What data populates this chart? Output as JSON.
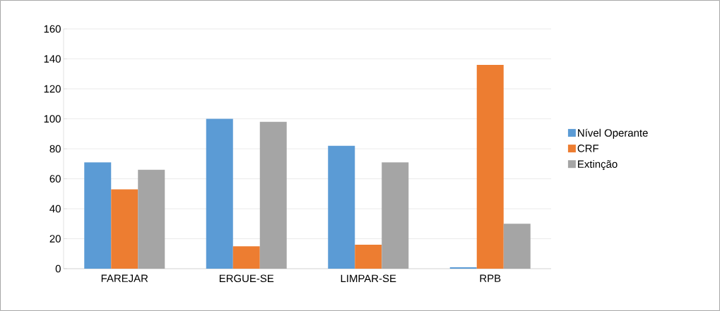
{
  "chart_data": {
    "type": "bar",
    "categories": [
      "FAREJAR",
      "ERGUE-SE",
      "LIMPAR-SE",
      "RPB"
    ],
    "series": [
      {
        "name": "Nível Operante",
        "color": "#5b9bd5",
        "values": [
          71,
          100,
          82,
          1
        ]
      },
      {
        "name": "CRF",
        "color": "#ed7d31",
        "values": [
          53,
          15,
          16,
          136
        ]
      },
      {
        "name": "Extinção",
        "color": "#a5a5a5",
        "values": [
          66,
          98,
          71,
          30
        ]
      }
    ],
    "ylim": [
      0,
      160
    ],
    "yticks": [
      0,
      20,
      40,
      60,
      80,
      100,
      120,
      140,
      160
    ],
    "grid": "y",
    "legend": "right"
  }
}
